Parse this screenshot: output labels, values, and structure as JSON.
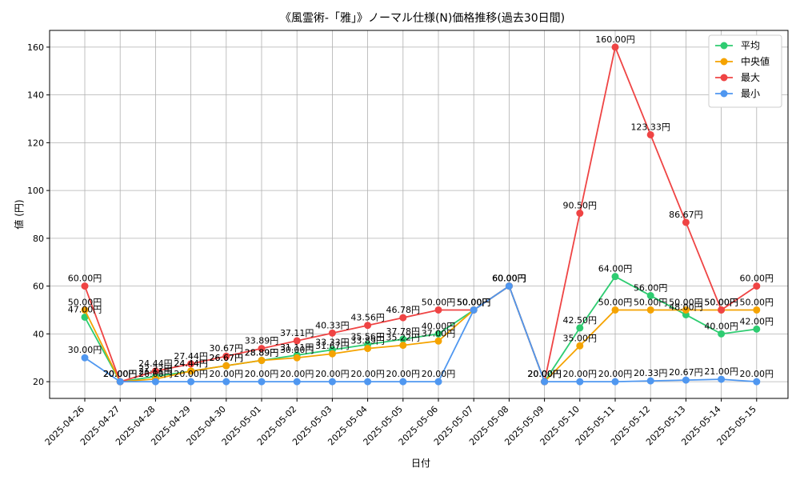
{
  "chart_data": {
    "type": "line",
    "title": "《風霊術-「雅」》ノーマル仕様(N)価格推移(過去30日間)",
    "xlabel": "日付",
    "ylabel": "値 (円)",
    "categories": [
      "2025-04-26",
      "2025-04-27",
      "2025-04-28",
      "2025-04-29",
      "2025-04-30",
      "2025-05-01",
      "2025-05-02",
      "2025-05-03",
      "2025-05-04",
      "2025-05-05",
      "2025-05-06",
      "2025-05-07",
      "2025-05-08",
      "2025-05-09",
      "2025-05-10",
      "2025-05-11",
      "2025-05-12",
      "2025-05-13",
      "2025-05-14",
      "2025-05-15"
    ],
    "ylim": [
      13,
      167
    ],
    "yticks": [
      20,
      40,
      60,
      80,
      100,
      120,
      140,
      160
    ],
    "grid": true,
    "legend_position": "top-right",
    "series": [
      {
        "name": "平均",
        "color": "#2ecc71",
        "values": [
          47.0,
          20.0,
          22.22,
          24.44,
          26.67,
          28.89,
          31.11,
          33.33,
          35.56,
          37.78,
          40.0,
          50.0,
          60.0,
          20.0,
          42.5,
          64.0,
          56.0,
          48.0,
          40.0,
          42.0
        ],
        "labels": [
          "47.00円",
          "20.00円",
          "22.22円",
          "24.44円",
          "26.67円",
          "28.89円",
          "31.11円",
          "33.33円",
          "35.56円",
          "37.78円",
          "40.00円",
          "50.00円",
          "60.00円",
          "20.00円",
          "42.50円",
          "64.00円",
          "56.00円",
          "48.00円",
          "40.00円",
          "42.00円"
        ]
      },
      {
        "name": "中央値",
        "color": "#f5a300",
        "values": [
          50.0,
          20.0,
          21.11,
          24.44,
          26.67,
          28.89,
          30.0,
          31.67,
          33.89,
          35.22,
          37.0,
          50.0,
          60.0,
          20.0,
          35.0,
          50.0,
          50.0,
          50.0,
          50.0,
          50.0
        ],
        "labels": [
          "50.00円",
          "20.00円",
          "21.11円",
          "24.44円",
          "26.67円",
          "28.89円",
          "30.00円",
          "31.67円",
          "33.89円",
          "35.22円",
          "37.00円",
          "50.00円",
          "60.00円",
          "20.00円",
          "35.00円",
          "50.00円",
          "50.00円",
          "50.00円",
          "50.00円",
          "50.00円"
        ]
      },
      {
        "name": "最大",
        "color": "#ef4444",
        "values": [
          60.0,
          20.0,
          24.44,
          27.44,
          30.67,
          33.89,
          37.11,
          40.33,
          43.56,
          46.78,
          50.0,
          50.0,
          60.0,
          20.0,
          90.5,
          160.0,
          123.33,
          86.67,
          50.0,
          60.0
        ],
        "labels": [
          "60.00円",
          "20.00円",
          "24.44円",
          "27.44円",
          "30.67円",
          "33.89円",
          "37.11円",
          "40.33円",
          "43.56円",
          "46.78円",
          "50.00円",
          "50.00円",
          "60.00円",
          "20.00円",
          "90.50円",
          "160.00円",
          "123.33円",
          "86.67円",
          "50.00円",
          "60.00円"
        ]
      },
      {
        "name": "最小",
        "color": "#4f97f0",
        "values": [
          30.0,
          20.0,
          20.0,
          20.0,
          20.0,
          20.0,
          20.0,
          20.0,
          20.0,
          20.0,
          20.0,
          50.0,
          60.0,
          20.0,
          20.0,
          20.0,
          20.33,
          20.67,
          21.0,
          20.0
        ],
        "labels": [
          "30.00円",
          "20.00円",
          "20.00円",
          "20.00円",
          "20.00円",
          "20.00円",
          "20.00円",
          "20.00円",
          "20.00円",
          "20.00円",
          "20.00円",
          "50.00円",
          "60.00円",
          "20.00円",
          "20.00円",
          "20.00円",
          "20.33円",
          "20.67円",
          "21.00円",
          "20.00円"
        ]
      }
    ]
  }
}
